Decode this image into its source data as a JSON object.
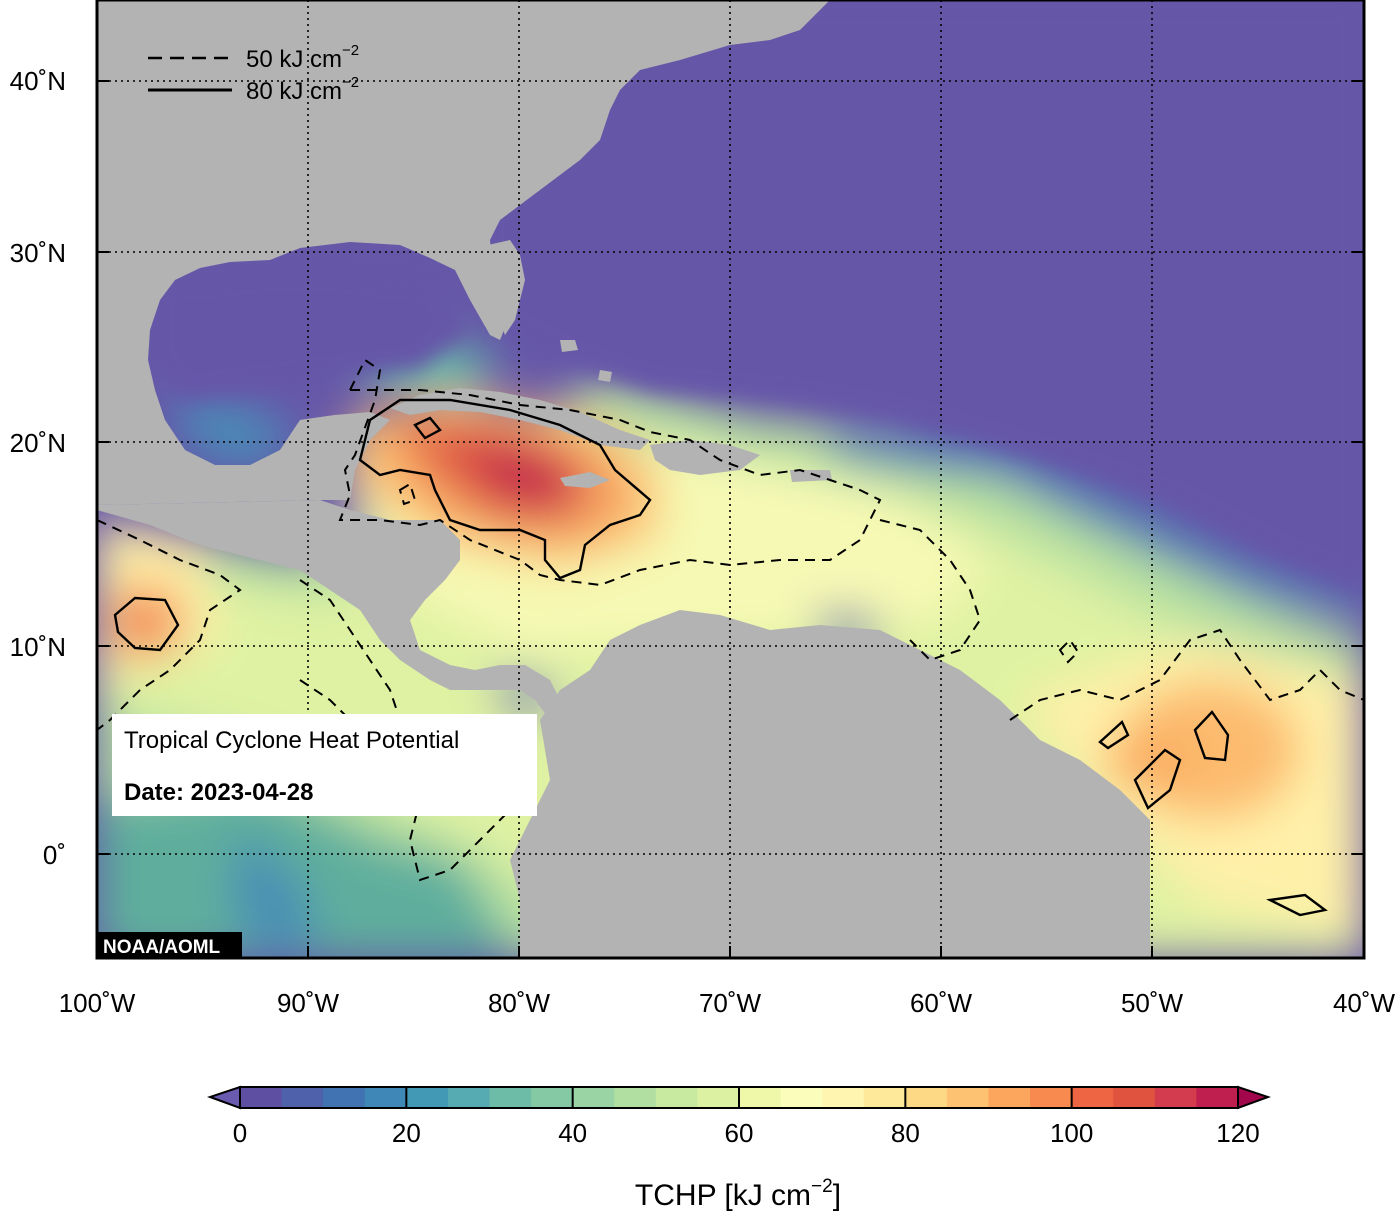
{
  "map": {
    "title": "Tropical Cyclone Heat Potential",
    "date_label": "Date: 2023-04-28",
    "credit": "NOAA/AOML",
    "extent": {
      "lon": [
        -100,
        -40
      ],
      "lat": [
        -5,
        44
      ]
    },
    "lon_ticks": [
      "100˚W",
      "90˚W",
      "80˚W",
      "70˚W",
      "60˚W",
      "50˚W",
      "40˚W"
    ],
    "lat_ticks": [
      "40˚N",
      "30˚N",
      "20˚N",
      "10˚N",
      "0˚"
    ],
    "gridlines": "dotted",
    "land_color": "#b3b3b3",
    "contour_legend": [
      {
        "style": "dashed",
        "label": "50 kJ cm",
        "exp": "−2"
      },
      {
        "style": "solid",
        "label": "80 kJ cm",
        "exp": "−2"
      }
    ]
  },
  "colorbar": {
    "label": "TCHP [kJ cm",
    "label_exp": "−2",
    "label_close": "]",
    "min": 0,
    "max": 120,
    "step": 5,
    "ticks": [
      "0",
      "20",
      "40",
      "60",
      "80",
      "100",
      "120"
    ],
    "colors": [
      "#5e4fa2",
      "#4f61aa",
      "#4173b3",
      "#3f87b6",
      "#4199b6",
      "#56aab1",
      "#6dbca8",
      "#84c8a4",
      "#9bd4a4",
      "#b1dfa2",
      "#c8e9a0",
      "#dcf1a2",
      "#eef8a8",
      "#fbfdba",
      "#fff5b0",
      "#fee89a",
      "#fed985",
      "#fdc372",
      "#fca55d",
      "#f8894f",
      "#ee6544",
      "#e0533e",
      "#d33c4e",
      "#bf1f4f"
    ],
    "over_color": "#a2064b",
    "under_color": "#6a5ab0"
  },
  "zoom_hint": "map view"
}
